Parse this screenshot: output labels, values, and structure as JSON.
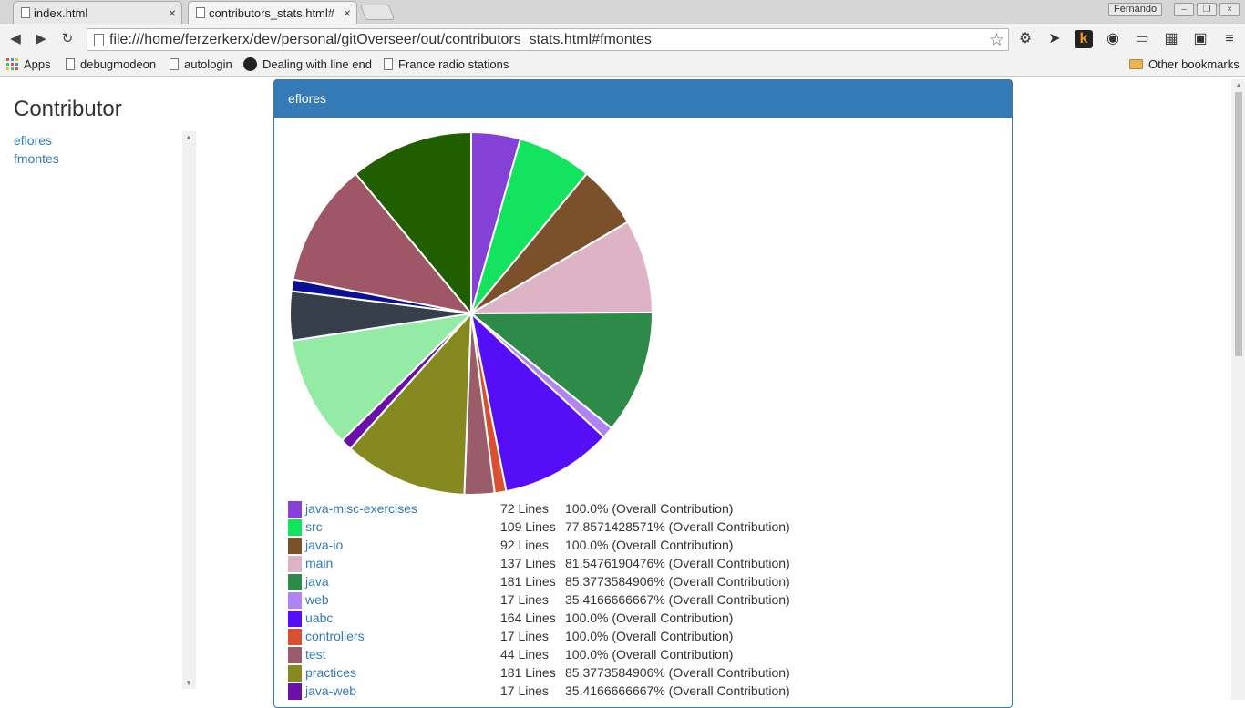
{
  "browser": {
    "tabs": [
      {
        "title": "index.html"
      },
      {
        "title": "contributors_stats.html#"
      }
    ],
    "profile_name": "Fernando",
    "url": "file:///home/ferzerkerx/dev/personal/gitOverseer/out/contributors_stats.html#fmontes",
    "bookmarks": [
      "Apps",
      "debugmodeon",
      "autologin",
      "Dealing with line end",
      "France radio stations"
    ],
    "other_bookmarks": "Other bookmarks"
  },
  "sidebar": {
    "title": "Contributor",
    "contributors": [
      "eflores",
      "fmontes"
    ]
  },
  "panel": {
    "title": "eflores"
  },
  "chart_data": {
    "type": "pie",
    "title": "",
    "slices": [
      {
        "label": "java-misc-exercises",
        "value": 72,
        "color": "#8540d6"
      },
      {
        "label": "src",
        "value": 109,
        "color": "#14e35f"
      },
      {
        "label": "java-io",
        "value": 92,
        "color": "#7b512b"
      },
      {
        "label": "main",
        "value": 137,
        "color": "#ddb3c5"
      },
      {
        "label": "java",
        "value": 181,
        "color": "#2e8a49"
      },
      {
        "label": "web",
        "value": 17,
        "color": "#b084f2"
      },
      {
        "label": "uabc",
        "value": 164,
        "color": "#560ef6"
      },
      {
        "label": "controllers",
        "value": 17,
        "color": "#d8502f"
      },
      {
        "label": "test",
        "value": 44,
        "color": "#9b5c6a"
      },
      {
        "label": "practices",
        "value": 181,
        "color": "#85891f"
      },
      {
        "label": "java-web",
        "value": 17,
        "color": "#6a10a8"
      },
      {
        "label": "",
        "value": 164,
        "color": "#94eba5"
      },
      {
        "label": "",
        "value": 72,
        "color": "#373f4a"
      },
      {
        "label": "",
        "value": 17,
        "color": "#0c0f93"
      },
      {
        "label": "",
        "value": 181,
        "color": "#9f5768"
      },
      {
        "label": "",
        "value": 181,
        "color": "#215e00"
      }
    ]
  },
  "legend": [
    {
      "name": "java-misc-exercises",
      "lines": "72 Lines",
      "pct": "100.0% (Overall Contribution)",
      "color": "#8540d6"
    },
    {
      "name": "src",
      "lines": "109 Lines",
      "pct": "77.8571428571% (Overall Contribution)",
      "color": "#14e35f"
    },
    {
      "name": "java-io",
      "lines": "92 Lines",
      "pct": "100.0% (Overall Contribution)",
      "color": "#7b512b"
    },
    {
      "name": "main",
      "lines": "137 Lines",
      "pct": "81.5476190476% (Overall Contribution)",
      "color": "#ddb3c5"
    },
    {
      "name": "java",
      "lines": "181 Lines",
      "pct": "85.3773584906% (Overall Contribution)",
      "color": "#2e8a49"
    },
    {
      "name": "web",
      "lines": "17 Lines",
      "pct": "35.4166666667% (Overall Contribution)",
      "color": "#b084f2"
    },
    {
      "name": "uabc",
      "lines": "164 Lines",
      "pct": "100.0% (Overall Contribution)",
      "color": "#560ef6"
    },
    {
      "name": "controllers",
      "lines": "17 Lines",
      "pct": "100.0% (Overall Contribution)",
      "color": "#d8502f"
    },
    {
      "name": "test",
      "lines": "44 Lines",
      "pct": "100.0% (Overall Contribution)",
      "color": "#9b5c6a"
    },
    {
      "name": "practices",
      "lines": "181 Lines",
      "pct": "85.3773584906% (Overall Contribution)",
      "color": "#85891f"
    },
    {
      "name": "java-web",
      "lines": "17 Lines",
      "pct": "35.4166666667% (Overall Contribution)",
      "color": "#6a10a8"
    }
  ]
}
